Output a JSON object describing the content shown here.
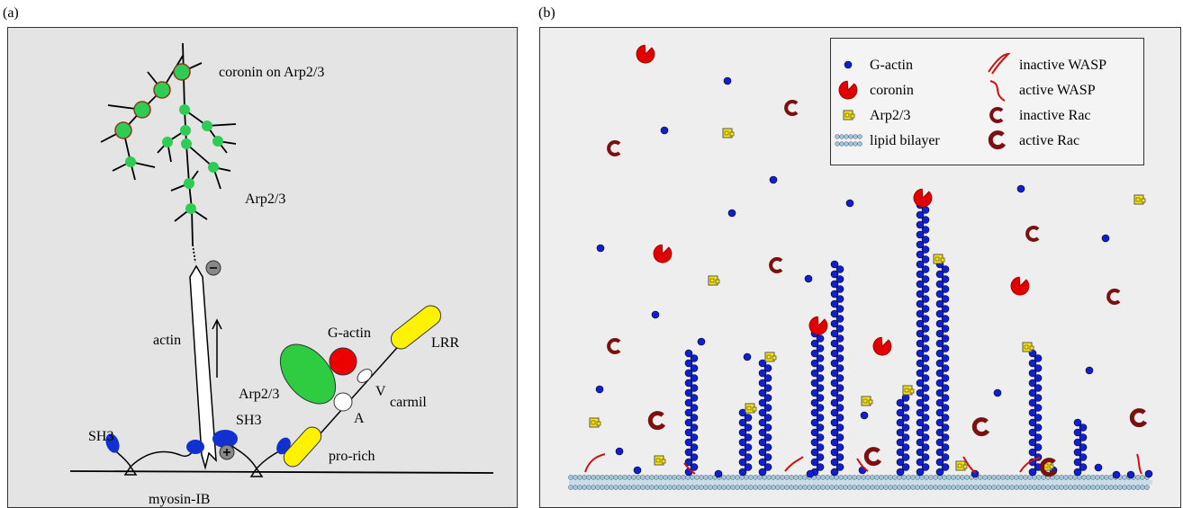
{
  "panels": [
    {
      "label": "(a)",
      "labels": {
        "coronin": "coronin on Arp2/3",
        "arp_tree": "Arp2/3",
        "actin": "actin",
        "g_actin": "G-actin",
        "lrr": "LRR",
        "arp_carmil": "Arp2/3",
        "v": "V",
        "carmil": "carmil",
        "a": "A",
        "sh3_left": "SH3",
        "sh3_right": "SH3",
        "pro_rich": "pro-rich",
        "myosin": "myosin-IB"
      }
    },
    {
      "label": "(b)",
      "legend": [
        "G-actin",
        "coronin",
        "Arp2/3",
        "lipid bilayer",
        "inactive WASP",
        "active WASP",
        "inactive Rac",
        "active Rac"
      ]
    }
  ]
}
